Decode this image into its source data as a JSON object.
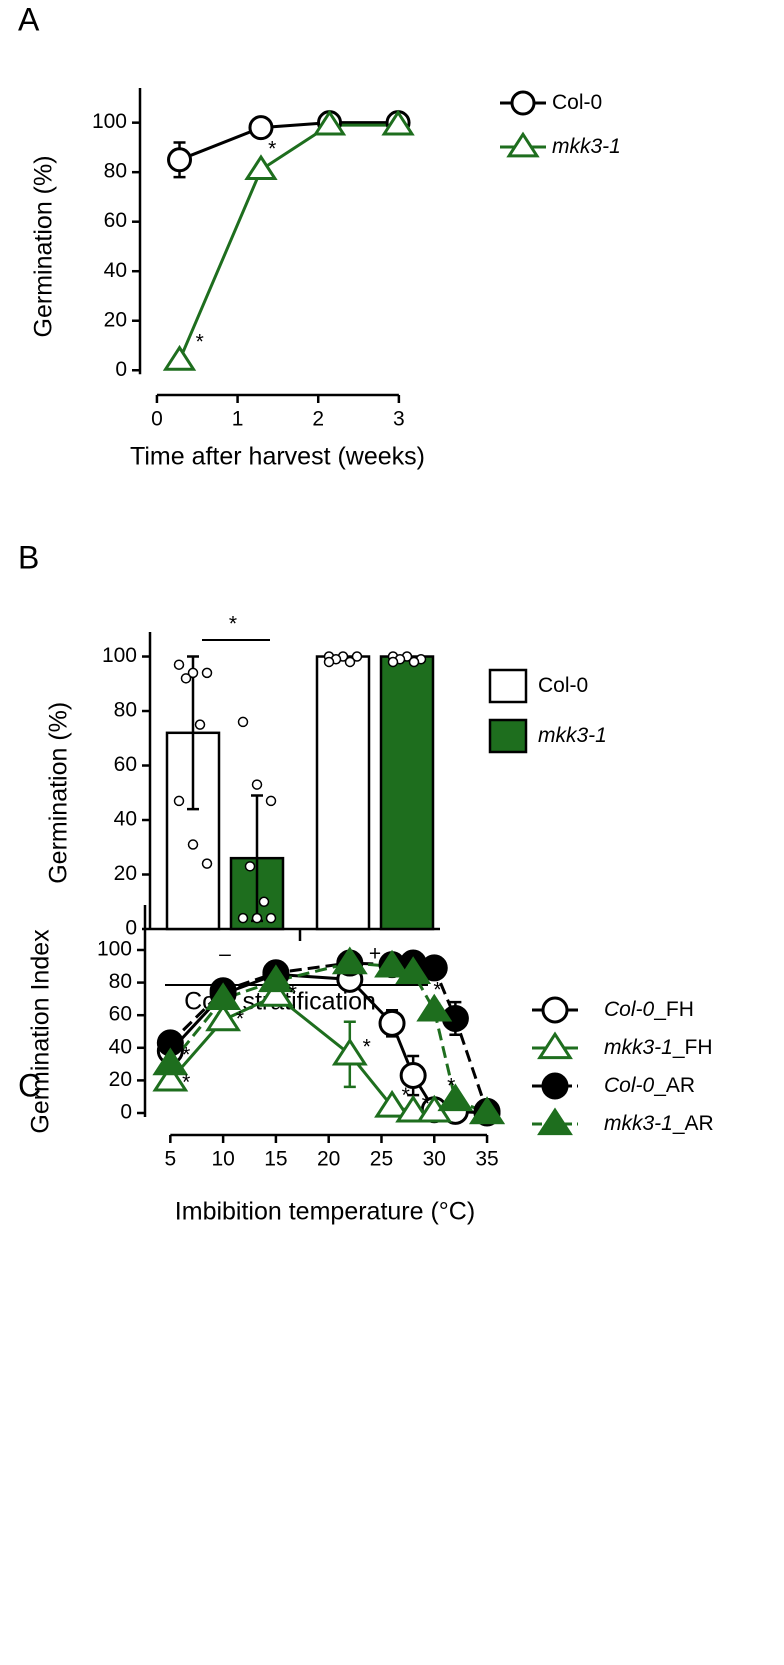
{
  "chart_data": [
    {
      "type": "line",
      "panel": "A",
      "xlabel": "Time after harvest (weeks)",
      "ylabel": "Germination (%)",
      "x": [
        0.28,
        1.29,
        2.14,
        2.99
      ],
      "xlim": [
        -0.21,
        3.2
      ],
      "xticks": [
        0,
        1,
        2,
        3
      ],
      "ylim": [
        -10,
        114
      ],
      "yticks": [
        0,
        20,
        40,
        60,
        80,
        100
      ],
      "series": [
        {
          "name": "Col-0",
          "color": "#000000",
          "marker": "circle",
          "filled": false,
          "dashed": false,
          "italic": false,
          "values": [
            85,
            98,
            100,
            100
          ],
          "errors": [
            7,
            null,
            null,
            null
          ]
        },
        {
          "name": "mkk3-1",
          "color": "#1e6e1e",
          "marker": "triangle",
          "filled": false,
          "dashed": false,
          "italic": true,
          "values": [
            4,
            81,
            99,
            99
          ],
          "errors": [
            null,
            null,
            null,
            null
          ]
        }
      ],
      "annotations": [
        {
          "text": "*",
          "x": 0.53,
          "y": 11
        },
        {
          "text": "*",
          "x": 1.43,
          "y": 89
        }
      ]
    },
    {
      "type": "bar",
      "panel": "B",
      "xlabel": "Cold stratification",
      "ylabel": "Germination (%)",
      "categories": [
        "–",
        "+"
      ],
      "ylim": [
        0,
        109
      ],
      "yticks": [
        0,
        20,
        40,
        60,
        80,
        100
      ],
      "series": [
        {
          "name": "Col-0",
          "color": "#ffffff",
          "italic": false,
          "values": [
            72,
            100
          ],
          "errors": [
            28,
            null
          ],
          "points": [
            [
              97,
              94,
              94,
              92,
              75,
              47,
              31,
              24
            ],
            [
              100,
              100,
              100,
              99,
              98,
              98
            ]
          ]
        },
        {
          "name": "mkk3-1",
          "color": "#1e6e1e",
          "italic": true,
          "values": [
            26,
            100
          ],
          "errors": [
            23,
            null
          ],
          "points": [
            [
              76,
              53,
              47,
              23,
              10,
              4,
              4,
              4
            ],
            [
              100,
              100,
              99,
              99,
              98,
              98
            ]
          ]
        }
      ],
      "annotations": [
        {
          "text": "*"
        }
      ]
    },
    {
      "type": "line",
      "panel": "C",
      "xlabel": "Imbibition temperature (°C)",
      "ylabel": "Germination Index",
      "x": [
        5,
        10,
        15,
        22,
        26,
        28,
        30,
        32,
        35
      ],
      "xlim": [
        2.6,
        36.7
      ],
      "xticks": [
        5,
        10,
        15,
        20,
        25,
        30,
        35
      ],
      "ylim": [
        -13.5,
        127.6
      ],
      "yticks": [
        0,
        20,
        40,
        60,
        80,
        100
      ],
      "series": [
        {
          "name": "Col-0_FH",
          "color": "#000000",
          "marker": "circle",
          "filled": false,
          "dashed": false,
          "italic": true,
          "values": [
            38,
            73,
            85,
            82,
            55,
            23,
            2,
            1,
            0
          ],
          "errors": [
            null,
            null,
            null,
            null,
            8,
            12,
            null,
            null,
            null
          ]
        },
        {
          "name": "mkk3-1_FH",
          "color": "#1e6e1e",
          "marker": "triangle",
          "filled": false,
          "dashed": false,
          "italic": true,
          "values": [
            20,
            57,
            72,
            36,
            4,
            1,
            1,
            null,
            0
          ],
          "errors": [
            null,
            4,
            null,
            20,
            null,
            null,
            null,
            null,
            null
          ]
        },
        {
          "name": "Col-0_AR",
          "color": "#000000",
          "marker": "circle",
          "filled": true,
          "dashed": true,
          "italic": true,
          "values": [
            43,
            75,
            86,
            92,
            91,
            92,
            89,
            58,
            1
          ],
          "errors": [
            null,
            null,
            null,
            null,
            null,
            null,
            5,
            10,
            null
          ]
        },
        {
          "name": "mkk3-1_AR",
          "color": "#1e6e1e",
          "marker": "triangle",
          "filled": true,
          "dashed": true,
          "italic": true,
          "values": [
            30,
            70,
            81,
            92,
            90,
            86,
            63,
            8,
            0
          ],
          "errors": [
            null,
            null,
            null,
            null,
            null,
            null,
            4,
            null,
            null
          ]
        }
      ],
      "annotations": [
        {
          "text": "*",
          "x": 6.5,
          "y": 35
        },
        {
          "text": "*",
          "x": 6.5,
          "y": 18
        },
        {
          "text": "*",
          "x": 11.6,
          "y": 57
        },
        {
          "text": "*",
          "x": 16.6,
          "y": 73
        },
        {
          "text": "*",
          "x": 23.6,
          "y": 40
        },
        {
          "text": "*",
          "x": 27.3,
          "y": 10
        },
        {
          "text": "*",
          "x": 29.2,
          "y": 5
        },
        {
          "text": "*",
          "x": 30.3,
          "y": 75
        },
        {
          "text": "*",
          "x": 31.6,
          "y": 16
        }
      ]
    }
  ]
}
